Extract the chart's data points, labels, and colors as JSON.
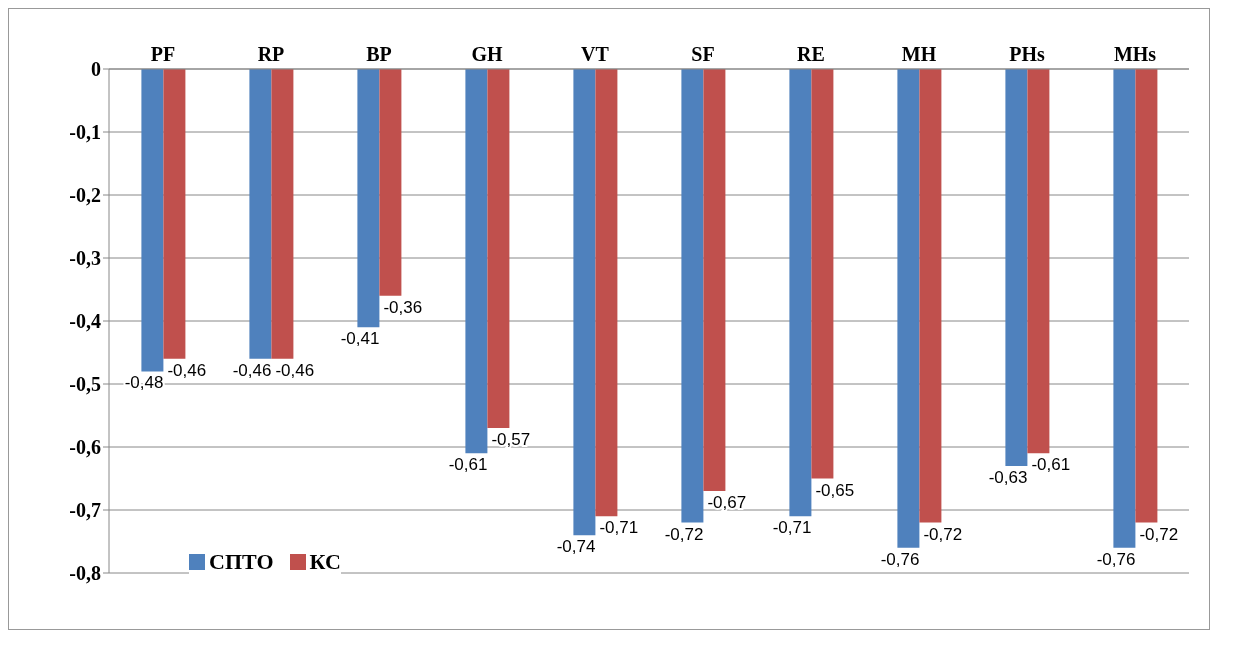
{
  "chart_data": {
    "type": "bar",
    "categories": [
      "PF",
      "RP",
      "BP",
      "GH",
      "VT",
      "SF",
      "RE",
      "MH",
      "PHs",
      "MHs"
    ],
    "series": [
      {
        "name": "СПТО",
        "color": "#4f81bd",
        "values": [
          -0.48,
          -0.46,
          -0.41,
          -0.61,
          -0.74,
          -0.72,
          -0.71,
          -0.76,
          -0.63,
          -0.76
        ],
        "value_labels": [
          "-0,48",
          "-0,46",
          "-0,41",
          "-0,61",
          "-0,74",
          "-0,72",
          "-0,71",
          "-0,76",
          "-0,63",
          "-0,76"
        ]
      },
      {
        "name": "КС",
        "color": "#c0504d",
        "values": [
          -0.46,
          -0.46,
          -0.36,
          -0.57,
          -0.71,
          -0.67,
          -0.65,
          -0.72,
          -0.61,
          -0.72
        ],
        "value_labels": [
          "-0,46",
          "-0,46",
          "-0,36",
          "-0,57",
          "-0,71",
          "-0,67",
          "-0,65",
          "-0,72",
          "-0,61",
          "-0,72"
        ]
      }
    ],
    "ylim": [
      -0.8,
      0
    ],
    "yticks": [
      0,
      {
        "value": -0.1,
        "label": "-0,1"
      },
      {
        "value": -0.2,
        "label": "-0,2"
      },
      {
        "value": -0.3,
        "label": "-0,3"
      },
      {
        "value": -0.4,
        "label": "-0,4"
      },
      {
        "value": -0.5,
        "label": "-0,5"
      },
      {
        "value": -0.6,
        "label": "-0,6"
      },
      {
        "value": -0.7,
        "label": "-0,7"
      },
      {
        "value": -0.8,
        "label": "-0,8"
      }
    ],
    "grid": "y",
    "legend": "bottom left"
  }
}
